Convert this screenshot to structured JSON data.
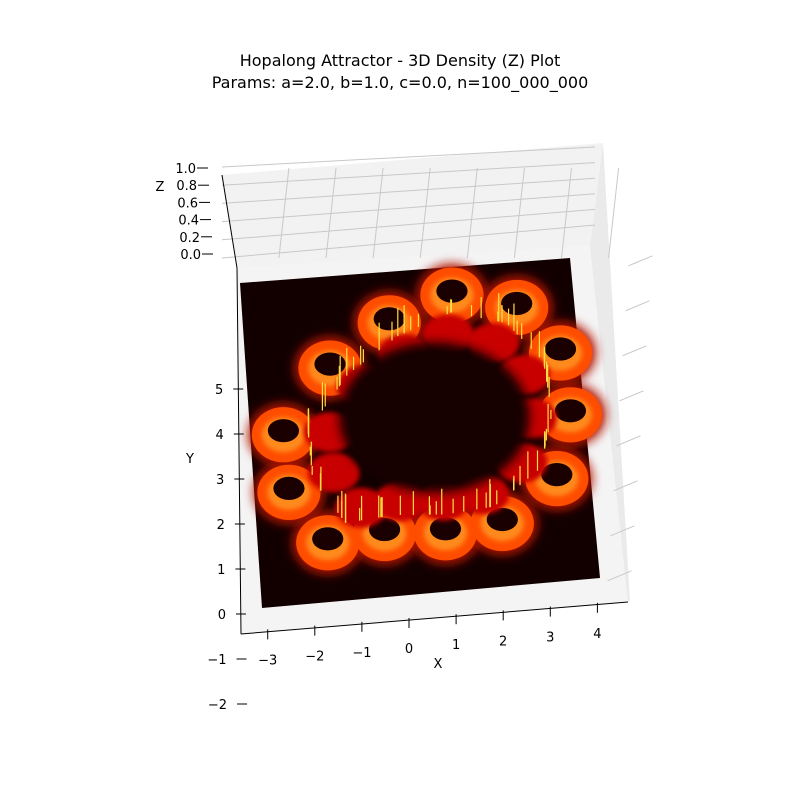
{
  "chart_data": {
    "type": "3d-surface",
    "title": "Hopalong Attractor - 3D Density (Z) Plot",
    "subtitle": "Params: a=2.0, b=1.0, c=0.0, n=100_000_000",
    "xlabel": "X",
    "ylabel": "Y",
    "zlabel": "Z",
    "xticks": [
      "−3",
      "−2",
      "−1",
      "0",
      "1",
      "2",
      "3",
      "4"
    ],
    "yticks": [
      "−2",
      "−1",
      "0",
      "1",
      "2",
      "3",
      "4",
      "5"
    ],
    "zticks": [
      "0.0",
      "0.2",
      "0.4",
      "0.6",
      "0.8",
      "1.0"
    ],
    "xlim": [
      -3.4,
      4.3
    ],
    "ylim": [
      -2.3,
      5.4
    ],
    "zlim": [
      0.0,
      1.0
    ],
    "colormap": "hot",
    "colors": {
      "background": "#120000",
      "pane": "#f2f2f2",
      "grid": "#c8c8c8",
      "ring_outer": "#ff4d00",
      "ring_inner": "#c80000",
      "spike": "#ffe040"
    },
    "lobe_centers": [
      [
        -1.7,
        -0.4
      ],
      [
        -0.5,
        -0.3
      ],
      [
        0.8,
        -0.4
      ],
      [
        2.0,
        -0.3
      ],
      [
        3.1,
        0.6
      ],
      [
        3.3,
        2.0
      ],
      [
        3.0,
        3.4
      ],
      [
        2.0,
        4.5
      ],
      [
        0.6,
        4.9
      ],
      [
        -0.7,
        4.4
      ],
      [
        -1.9,
        3.5
      ],
      [
        -2.8,
        2.1
      ],
      [
        -2.6,
        0.8
      ]
    ],
    "lobe_radius": 0.6,
    "density_level": 0.35
  }
}
